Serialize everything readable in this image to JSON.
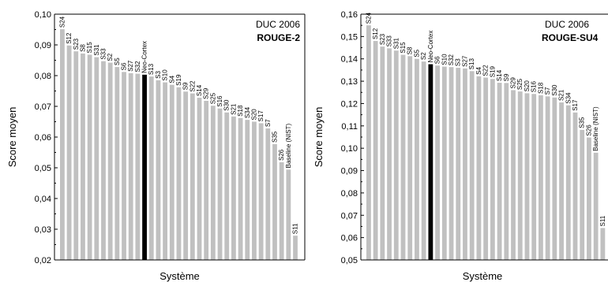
{
  "chart_data": [
    {
      "type": "bar",
      "title": "DUC 2006",
      "subtitle": "ROUGE-2",
      "xlabel": "Système",
      "ylabel": "Score moyen",
      "ylim": [
        0.02,
        0.1
      ],
      "yticks": [
        "0,02",
        "0,03",
        "0,04",
        "0,05",
        "0,06",
        "0,07",
        "0,08",
        "0,09",
        "0,10"
      ],
      "grid": false,
      "highlight": "Neo-Cortex",
      "bar_color": "#c0c0c0",
      "highlight_color": "#000000",
      "categories": [
        "S24",
        "S12",
        "S23",
        "S8",
        "S15",
        "S31",
        "S33",
        "S2",
        "S5",
        "S6",
        "S27",
        "S32",
        "Neo-Cortex",
        "S13",
        "S3",
        "S10",
        "S4",
        "S19",
        "S9",
        "S22",
        "S14",
        "S29",
        "S25",
        "S16",
        "S30",
        "S21",
        "S18",
        "S34",
        "S20",
        "S17",
        "S7",
        "S35",
        "S26",
        "Baseline (NIST)",
        "S11"
      ],
      "values": [
        0.0951,
        0.0898,
        0.0879,
        0.0872,
        0.0868,
        0.086,
        0.0847,
        0.0842,
        0.0828,
        0.0812,
        0.0808,
        0.0806,
        0.0803,
        0.0797,
        0.0785,
        0.0778,
        0.077,
        0.0762,
        0.0748,
        0.0742,
        0.0728,
        0.0718,
        0.0702,
        0.0693,
        0.068,
        0.0667,
        0.0662,
        0.0656,
        0.065,
        0.0645,
        0.0628,
        0.0577,
        0.0518,
        0.0494,
        0.0279
      ]
    },
    {
      "type": "bar",
      "title": "DUC 2006",
      "subtitle": "ROUGE-SU4",
      "xlabel": "Système",
      "ylabel": "Score moyen",
      "ylim": [
        0.05,
        0.16
      ],
      "yticks": [
        "0,05",
        "0,06",
        "0,07",
        "0,08",
        "0,09",
        "0,10",
        "0,11",
        "0,12",
        "0,13",
        "0,14",
        "0,15",
        "0,16"
      ],
      "grid": false,
      "highlight": "Neo-Cortex",
      "bar_color": "#c0c0c0",
      "highlight_color": "#000000",
      "categories": [
        "S24",
        "S12",
        "S23",
        "S33",
        "S31",
        "S15",
        "S8",
        "S5",
        "S2",
        "Neo-Cortex",
        "S6",
        "S10",
        "S32",
        "S3",
        "S27",
        "S13",
        "S4",
        "S22",
        "S19",
        "S14",
        "S9",
        "S29",
        "S25",
        "S20",
        "S16",
        "S18",
        "S7",
        "S30",
        "S21",
        "S34",
        "S17",
        "S35",
        "S26",
        "Baseline (NIST)",
        "S11"
      ],
      "values": [
        0.155,
        0.148,
        0.1455,
        0.1447,
        0.1437,
        0.1418,
        0.1412,
        0.14,
        0.1388,
        0.1376,
        0.137,
        0.1365,
        0.1363,
        0.136,
        0.1357,
        0.1345,
        0.1322,
        0.1316,
        0.131,
        0.1293,
        0.1292,
        0.126,
        0.1254,
        0.1246,
        0.1243,
        0.1237,
        0.1232,
        0.1227,
        0.1205,
        0.1192,
        0.116,
        0.1082,
        0.1048,
        0.098,
        0.0643
      ]
    }
  ]
}
